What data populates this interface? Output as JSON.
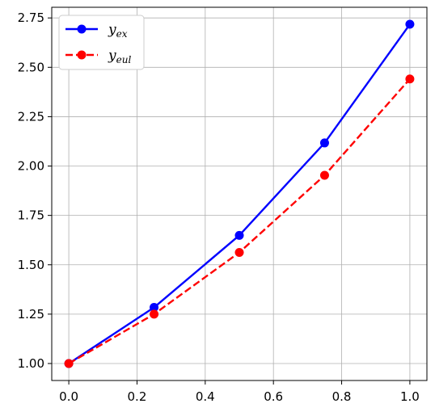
{
  "chart_data": {
    "type": "line",
    "x": [
      0.0,
      0.25,
      0.5,
      0.75,
      1.0
    ],
    "xlim": [
      -0.05,
      1.05
    ],
    "ylim": [
      0.914,
      2.804
    ],
    "xticks": [
      "0.0",
      "0.2",
      "0.4",
      "0.6",
      "0.8",
      "1.0"
    ],
    "yticks": [
      "1.00",
      "1.25",
      "1.50",
      "1.75",
      "2.00",
      "2.25",
      "2.50",
      "2.75"
    ],
    "grid": true,
    "legend_position": "upper-left",
    "series": [
      {
        "name_main": "y",
        "name_sub": "ex",
        "color": "#0000ff",
        "style": "solid",
        "values": [
          1.0,
          1.284,
          1.649,
          2.117,
          2.718
        ]
      },
      {
        "name_main": "y",
        "name_sub": "eul",
        "color": "#ff0000",
        "style": "dashed",
        "values": [
          1.0,
          1.25,
          1.5625,
          1.953,
          2.441
        ]
      }
    ]
  }
}
